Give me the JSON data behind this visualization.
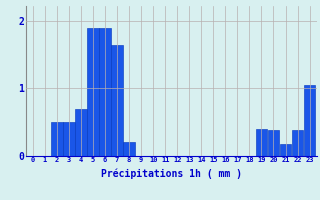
{
  "hours": [
    0,
    1,
    2,
    3,
    4,
    5,
    6,
    7,
    8,
    9,
    10,
    11,
    12,
    13,
    14,
    15,
    16,
    17,
    18,
    19,
    20,
    21,
    22,
    23
  ],
  "values": [
    0.0,
    0.0,
    0.5,
    0.5,
    0.7,
    1.9,
    1.9,
    1.65,
    0.2,
    0.0,
    0.0,
    0.0,
    0.0,
    0.0,
    0.0,
    0.0,
    0.0,
    0.0,
    0.0,
    0.4,
    0.38,
    0.18,
    0.38,
    1.05
  ],
  "bar_color": "#1a56e8",
  "bar_edge_color": "#0033bb",
  "background_color": "#d8f0f0",
  "grid_color": "#b8b0b0",
  "text_color": "#0000cc",
  "xlabel": "Précipitations 1h ( mm )",
  "ylim": [
    0,
    2.22
  ],
  "yticks": [
    0,
    1,
    2
  ],
  "title": ""
}
